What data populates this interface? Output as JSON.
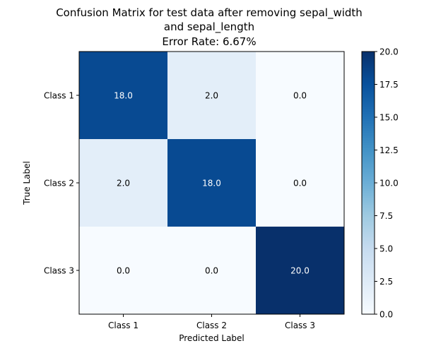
{
  "chart_data": {
    "type": "heatmap",
    "title_lines": [
      "Confusion Matrix for test data after removing sepal_width",
      "and sepal_length",
      "Error Rate: 6.67%"
    ],
    "xlabel": "Predicted Label",
    "ylabel": "True Label",
    "x_categories": [
      "Class 1",
      "Class 2",
      "Class 3"
    ],
    "y_categories": [
      "Class 1",
      "Class 2",
      "Class 3"
    ],
    "values": [
      [
        18.0,
        2.0,
        0.0
      ],
      [
        2.0,
        18.0,
        0.0
      ],
      [
        0.0,
        0.0,
        20.0
      ]
    ],
    "cell_labels": [
      [
        "18.0",
        "2.0",
        "0.0"
      ],
      [
        "2.0",
        "18.0",
        "0.0"
      ],
      [
        "0.0",
        "0.0",
        "20.0"
      ]
    ],
    "colormap": "Blues",
    "colormap_stops": [
      "#f7fbff",
      "#deebf7",
      "#c6dbef",
      "#9ecae1",
      "#6baed6",
      "#4292c6",
      "#2171b5",
      "#08519c",
      "#08306b"
    ],
    "colorbar": {
      "range": [
        0,
        20
      ],
      "ticks": [
        0,
        2.5,
        5,
        7.5,
        10,
        12.5,
        15,
        17.5,
        20
      ],
      "tick_labels": [
        "0.0",
        "2.5",
        "5.0",
        "7.5",
        "10.0",
        "12.5",
        "15.0",
        "17.5",
        "20.0"
      ]
    }
  }
}
